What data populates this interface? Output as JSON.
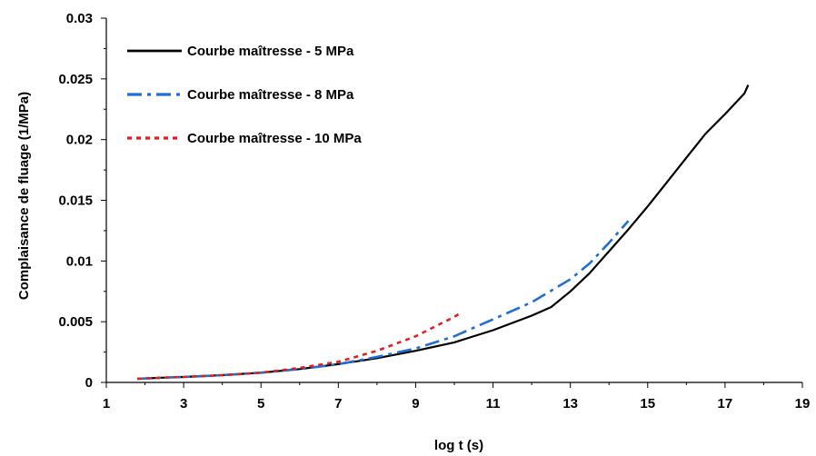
{
  "chart_data": {
    "type": "line",
    "xlabel": "log t (s)",
    "ylabel": "Complaisance de fluage (1/MPa)",
    "xlim": [
      1,
      19
    ],
    "ylim": [
      0,
      0.03
    ],
    "x_ticks": [
      "1",
      "3",
      "5",
      "7",
      "9",
      "11",
      "13",
      "15",
      "17",
      "19"
    ],
    "y_ticks": [
      "0",
      "0.005",
      "0.01",
      "0.015",
      "0.02",
      "0.025",
      "0.03"
    ],
    "grid": false,
    "legend_position": "top-left",
    "series": [
      {
        "name": "Courbe maîtresse - 5 MPa",
        "color": "#000000",
        "style": "solid",
        "x": [
          1.8,
          2.5,
          3.0,
          4.0,
          5.0,
          6.0,
          7.0,
          8.0,
          9.0,
          10.0,
          11.0,
          12.0,
          12.5,
          13.0,
          13.5,
          14.0,
          14.5,
          15.0,
          15.5,
          16.0,
          16.5,
          17.0,
          17.5,
          17.6
        ],
        "y": [
          0.0003,
          0.0004,
          0.00045,
          0.0006,
          0.0008,
          0.0011,
          0.0015,
          0.002,
          0.0026,
          0.0033,
          0.0043,
          0.0055,
          0.0062,
          0.0075,
          0.009,
          0.0108,
          0.0126,
          0.0145,
          0.0165,
          0.0185,
          0.0205,
          0.0221,
          0.0238,
          0.0245
        ]
      },
      {
        "name": "Courbe maîtresse - 8 MPa",
        "color": "#1f6fd1",
        "style": "dashdot",
        "x": [
          1.8,
          2.5,
          3.0,
          4.0,
          5.0,
          6.0,
          7.0,
          8.0,
          9.0,
          10.0,
          11.0,
          12.0,
          13.0,
          13.5,
          14.0,
          14.5
        ],
        "y": [
          0.0003,
          0.0004,
          0.00045,
          0.0006,
          0.0008,
          0.0011,
          0.0015,
          0.0021,
          0.0028,
          0.0038,
          0.0052,
          0.0066,
          0.0085,
          0.0098,
          0.0115,
          0.0133
        ]
      },
      {
        "name": "Courbe maîtresse - 10 MPa",
        "color": "#e02020",
        "style": "dotted",
        "x": [
          1.8,
          2.5,
          3.0,
          4.0,
          5.0,
          6.0,
          7.0,
          8.0,
          9.0,
          9.5,
          10.0,
          10.2
        ],
        "y": [
          0.0003,
          0.0004,
          0.00045,
          0.0006,
          0.0008,
          0.0012,
          0.0017,
          0.0026,
          0.0038,
          0.0046,
          0.0054,
          0.0058
        ]
      }
    ]
  }
}
